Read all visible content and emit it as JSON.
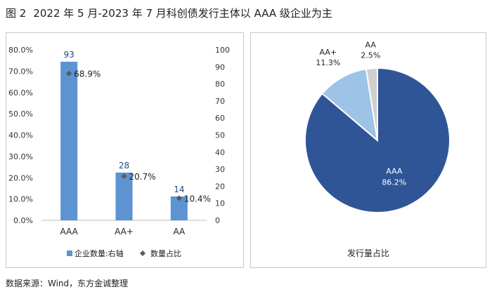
{
  "header": {
    "figure_label": "图 2",
    "title": "2022 年 5 月-2023 年 7 月科创债发行主体以 AAA 级企业为主"
  },
  "source": "数据来源：Wind，东方金诚整理",
  "colors": {
    "bar": "#5b93d3",
    "marker": "#595959",
    "pie_aaa": "#2f5597",
    "pie_aaplus": "#9dc3e6",
    "pie_aa": "#d0d0d0"
  },
  "chart_data": [
    {
      "type": "bar",
      "categories": [
        "AAA",
        "AA+",
        "AA"
      ],
      "series": [
        {
          "name": "企业数量:右轴",
          "axis": "right",
          "values": [
            93,
            28,
            14
          ],
          "data_labels": [
            "93",
            "28",
            "14"
          ]
        },
        {
          "name": "数量占比",
          "axis": "left",
          "style": "marker",
          "values": [
            68.9,
            20.7,
            10.4
          ],
          "data_labels": [
            "68.9%",
            "20.7%",
            "10.4%"
          ]
        }
      ],
      "y_left": {
        "ylim": [
          0,
          80
        ],
        "ticks": [
          "0.0%",
          "10.0%",
          "20.0%",
          "30.0%",
          "40.0%",
          "50.0%",
          "60.0%",
          "70.0%",
          "80.0%"
        ]
      },
      "y_right": {
        "ylim": [
          0,
          100
        ],
        "ticks": [
          "0",
          "10",
          "20",
          "30",
          "40",
          "50",
          "60",
          "70",
          "80",
          "90",
          "100"
        ]
      },
      "legend_position": "bottom",
      "grid": false
    },
    {
      "type": "pie",
      "title": "发行量占比",
      "categories": [
        "AAA",
        "AA+",
        "AA"
      ],
      "values": [
        86.2,
        11.3,
        2.5
      ],
      "labels": [
        "86.2%",
        "11.3%",
        "2.5%"
      ]
    }
  ]
}
